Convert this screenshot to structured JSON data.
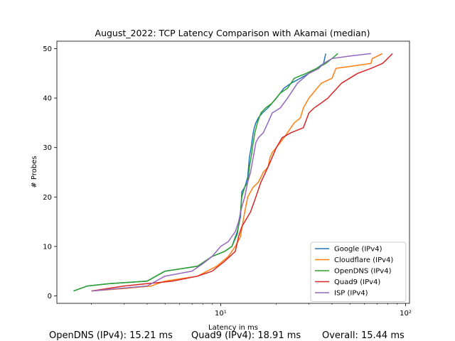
{
  "chart_data": {
    "type": "line",
    "title": "August_2022: TCP Latency Comparison with Akamai (median)",
    "xlabel": "Latency in ms",
    "ylabel": "# Probes",
    "xscale": "log",
    "xlim": [
      1.3,
      105
    ],
    "ylim": [
      -1.5,
      51.5
    ],
    "xticks": [
      {
        "value": 10,
        "label": "10¹"
      },
      {
        "value": 100,
        "label": "10²"
      }
    ],
    "yticks": [
      0,
      10,
      20,
      30,
      40,
      50
    ],
    "grid": false,
    "legend_position": "lower right",
    "series": [
      {
        "name": "Google (IPv4)",
        "color": "#1f77b4",
        "x": [
          1.6,
          1.9,
          2.5,
          4.0,
          5.0,
          7.5,
          9.0,
          10.5,
          11.5,
          12.3,
          12.8,
          13.0,
          13.5,
          14.0,
          14.3,
          14.6,
          15.0,
          15.2,
          15.5,
          16.0,
          16.8,
          18.0,
          20.0,
          22.0,
          24.0,
          27.0,
          30.0,
          33.0,
          36.0,
          37.0
        ],
        "y": [
          1,
          2,
          2.5,
          3,
          5,
          6,
          8,
          9,
          10,
          13,
          16,
          21,
          22,
          24,
          28,
          30,
          33,
          34,
          35,
          36,
          37,
          38,
          40,
          42,
          43,
          44,
          45,
          46,
          47,
          49
        ]
      },
      {
        "name": "Cloudflare (IPv4)",
        "color": "#ff7f0e",
        "x": [
          2.0,
          3.0,
          4.2,
          5.0,
          7.5,
          9.5,
          11.0,
          12.0,
          12.8,
          13.2,
          13.5,
          14.0,
          15.0,
          16.0,
          17.0,
          18.0,
          18.5,
          19.0,
          20.0,
          21.0,
          22.0,
          25.0,
          27.0,
          28.0,
          30.0,
          35.0,
          40.0,
          42.0,
          65.0,
          66.0,
          75.0
        ],
        "y": [
          1,
          1.5,
          2,
          3,
          4,
          6,
          8,
          10,
          12,
          15,
          17,
          20,
          22,
          23,
          25,
          26,
          28,
          29,
          30,
          31,
          32,
          35,
          36,
          38,
          40,
          43,
          44,
          46,
          47,
          48,
          49
        ]
      },
      {
        "name": "OpenDNS (IPv4)",
        "color": "#2ca02c",
        "x": [
          1.6,
          1.9,
          2.5,
          4.0,
          5.0,
          7.5,
          9.0,
          10.5,
          11.5,
          12.3,
          12.8,
          13.0,
          13.5,
          14.0,
          14.3,
          14.6,
          15.0,
          15.3,
          15.8,
          16.5,
          17.5,
          19.0,
          21.0,
          23.0,
          25.0,
          29.0,
          33.0,
          37.0,
          40.0,
          43.0
        ],
        "y": [
          1,
          2,
          2.5,
          3,
          5,
          6,
          8,
          9,
          10,
          12.5,
          17,
          20,
          22,
          23,
          26,
          28,
          31,
          33,
          35,
          37,
          38,
          39,
          41,
          42,
          44,
          45,
          46,
          47,
          48,
          49
        ]
      },
      {
        "name": "Quad9 (IPv4)",
        "color": "#d62728",
        "x": [
          2.0,
          3.0,
          4.0,
          5.5,
          7.5,
          9.0,
          10.5,
          12.0,
          12.5,
          13.0,
          13.5,
          14.5,
          15.5,
          16.5,
          17.5,
          18.5,
          20.0,
          21.5,
          24.0,
          28.0,
          30.0,
          32.0,
          35.0,
          38.0,
          45.0,
          55.0,
          65.0,
          75.0,
          80.0,
          85.0
        ],
        "y": [
          1,
          2,
          2.5,
          3,
          4,
          5,
          7,
          9,
          12,
          14,
          15,
          17,
          20,
          23,
          25,
          27,
          30,
          32,
          33,
          34,
          37,
          38,
          39,
          40,
          43,
          45,
          46,
          47,
          48,
          49
        ]
      },
      {
        "name": "ISP (IPv4)",
        "color": "#9467bd",
        "x": [
          2.0,
          2.8,
          4.0,
          5.0,
          7.0,
          8.0,
          9.0,
          10.0,
          11.0,
          12.0,
          12.5,
          13.0,
          13.5,
          14.0,
          14.5,
          15.0,
          15.5,
          16.0,
          17.0,
          18.0,
          19.0,
          21.0,
          23.0,
          26.0,
          30.0,
          34.0,
          36.0,
          40.0,
          50.0,
          65.0
        ],
        "y": [
          1,
          1.5,
          2,
          4,
          5,
          6.5,
          8,
          10,
          11,
          13,
          15,
          18,
          20,
          23,
          25,
          28,
          31,
          32,
          33,
          35,
          37,
          38,
          40,
          43,
          45,
          46,
          47,
          48,
          48.5,
          49
        ]
      }
    ]
  },
  "footer": {
    "opendns": "OpenDNS (IPv4): 15.21 ms",
    "quad9": "Quad9 (IPv4): 18.91 ms",
    "overall": "Overall: 15.44 ms"
  }
}
